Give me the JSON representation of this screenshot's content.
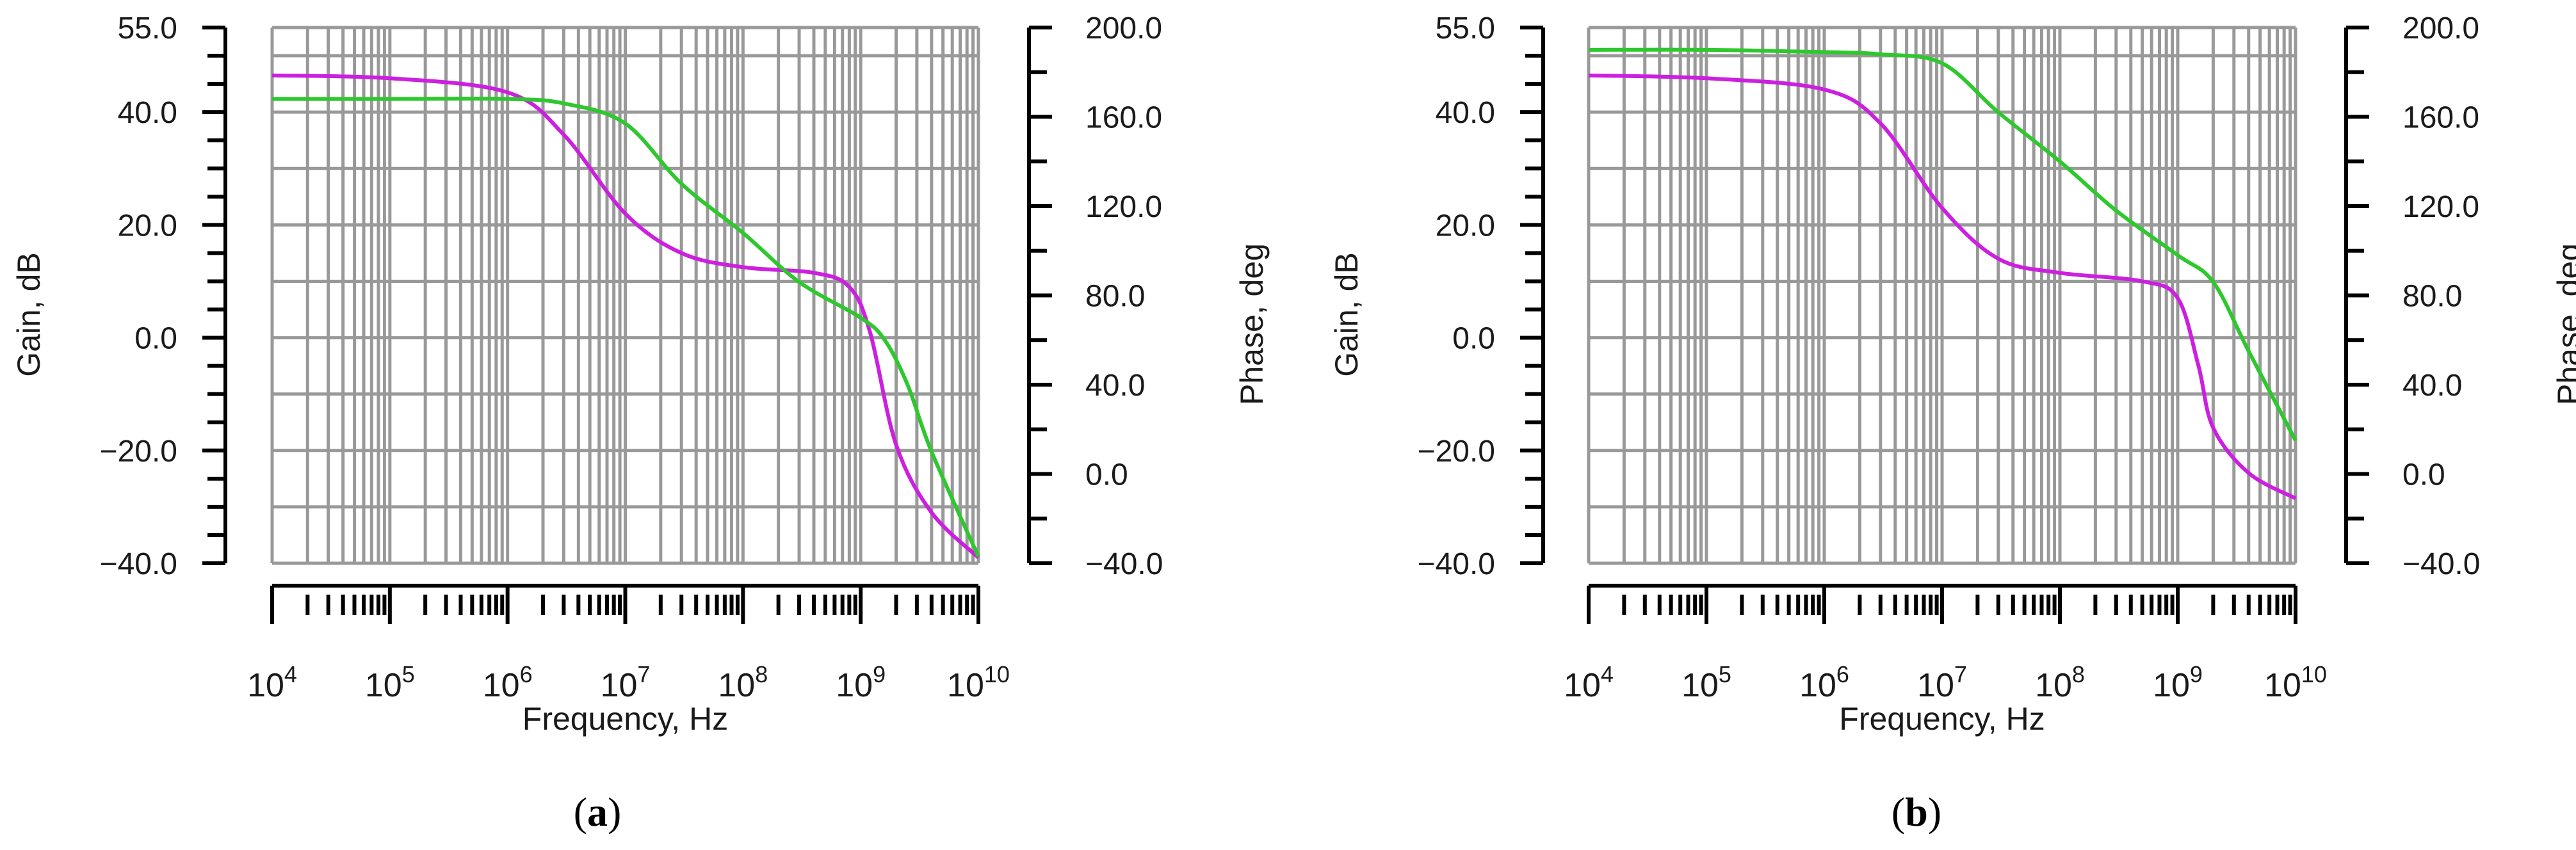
{
  "chart_data": [
    {
      "type": "line",
      "caption_letter": "a",
      "xlabel": "Frequency, Hz",
      "ylabel_left": "Gain, dB",
      "ylabel_right": "Phase, deg",
      "x_scale": "log",
      "xlim": [
        10000,
        10000000000
      ],
      "x_ticks": [
        {
          "base": "10",
          "exp": "4"
        },
        {
          "base": "10",
          "exp": "5"
        },
        {
          "base": "10",
          "exp": "6"
        },
        {
          "base": "10",
          "exp": "7"
        },
        {
          "base": "10",
          "exp": "8"
        },
        {
          "base": "10",
          "exp": "9"
        },
        {
          "base": "10",
          "exp": "10"
        }
      ],
      "ylim_left": [
        -40,
        55
      ],
      "left_ticks": [
        "55.0",
        "40.0",
        "20.0",
        "0.0",
        "-20.0",
        "-40.0"
      ],
      "ylim_right": [
        -40,
        200
      ],
      "right_ticks": [
        "200.0",
        "160.0",
        "120.0",
        "80.0",
        "40.0",
        "0.0",
        "-40.0"
      ],
      "grid": true,
      "series": [
        {
          "axis": "left",
          "color": "#cc1fe0",
          "x": [
            10000,
            100000,
            1000000,
            3000000,
            10000000,
            30000000,
            100000000,
            400000000,
            800000000,
            1200000000,
            2000000000,
            4000000000,
            10000000000
          ],
          "values": [
            46.5,
            46.0,
            43.5,
            36.0,
            22.0,
            15.0,
            12.5,
            11.5,
            9.0,
            1.0,
            -19.0,
            -31.0,
            -39.0
          ]
        },
        {
          "axis": "right",
          "color": "#2ec82e",
          "x": [
            10000,
            100000,
            1000000,
            3000000,
            10000000,
            30000000,
            100000000,
            300000000,
            1000000000,
            1600000000,
            2500000000,
            4000000000,
            10000000000
          ],
          "values": [
            168,
            168,
            168,
            166,
            157,
            130,
            108,
            86,
            70,
            60,
            40,
            10,
            -37
          ]
        }
      ]
    },
    {
      "type": "line",
      "caption_letter": "b",
      "xlabel": "Frequency, Hz",
      "ylabel_left": "Gain, dB",
      "ylabel_right": "Phase, deg",
      "x_scale": "log",
      "xlim": [
        10000,
        10000000000
      ],
      "x_ticks": [
        {
          "base": "10",
          "exp": "4"
        },
        {
          "base": "10",
          "exp": "5"
        },
        {
          "base": "10",
          "exp": "6"
        },
        {
          "base": "10",
          "exp": "7"
        },
        {
          "base": "10",
          "exp": "8"
        },
        {
          "base": "10",
          "exp": "9"
        },
        {
          "base": "10",
          "exp": "10"
        }
      ],
      "ylim_left": [
        -40,
        55
      ],
      "left_ticks": [
        "55.0",
        "40.0",
        "20.0",
        "0.0",
        "-20.0",
        "-40.0"
      ],
      "ylim_right": [
        -40,
        200
      ],
      "right_ticks": [
        "200.0",
        "160.0",
        "120.0",
        "80.0",
        "40.0",
        "0.0",
        "-40.0"
      ],
      "grid": true,
      "series": [
        {
          "axis": "left",
          "color": "#cc1fe0",
          "x": [
            10000,
            100000,
            1000000,
            3000000,
            10000000,
            30000000,
            100000000,
            500000000,
            1000000000,
            1500000000,
            2000000000,
            4000000000,
            10000000000
          ],
          "values": [
            46.5,
            46.0,
            44.0,
            38.0,
            23.0,
            14.0,
            11.5,
            10.0,
            7.0,
            -5.0,
            -16.0,
            -24.0,
            -28.5
          ]
        },
        {
          "axis": "right",
          "color": "#2ec82e",
          "x": [
            10000,
            100000,
            1000000,
            3000000,
            10000000,
            30000000,
            100000000,
            300000000,
            1000000000,
            2000000000,
            4000000000,
            10000000000
          ],
          "values": [
            190,
            190,
            189,
            188,
            184,
            162,
            140,
            118,
            98,
            86,
            55,
            15
          ]
        }
      ]
    }
  ]
}
